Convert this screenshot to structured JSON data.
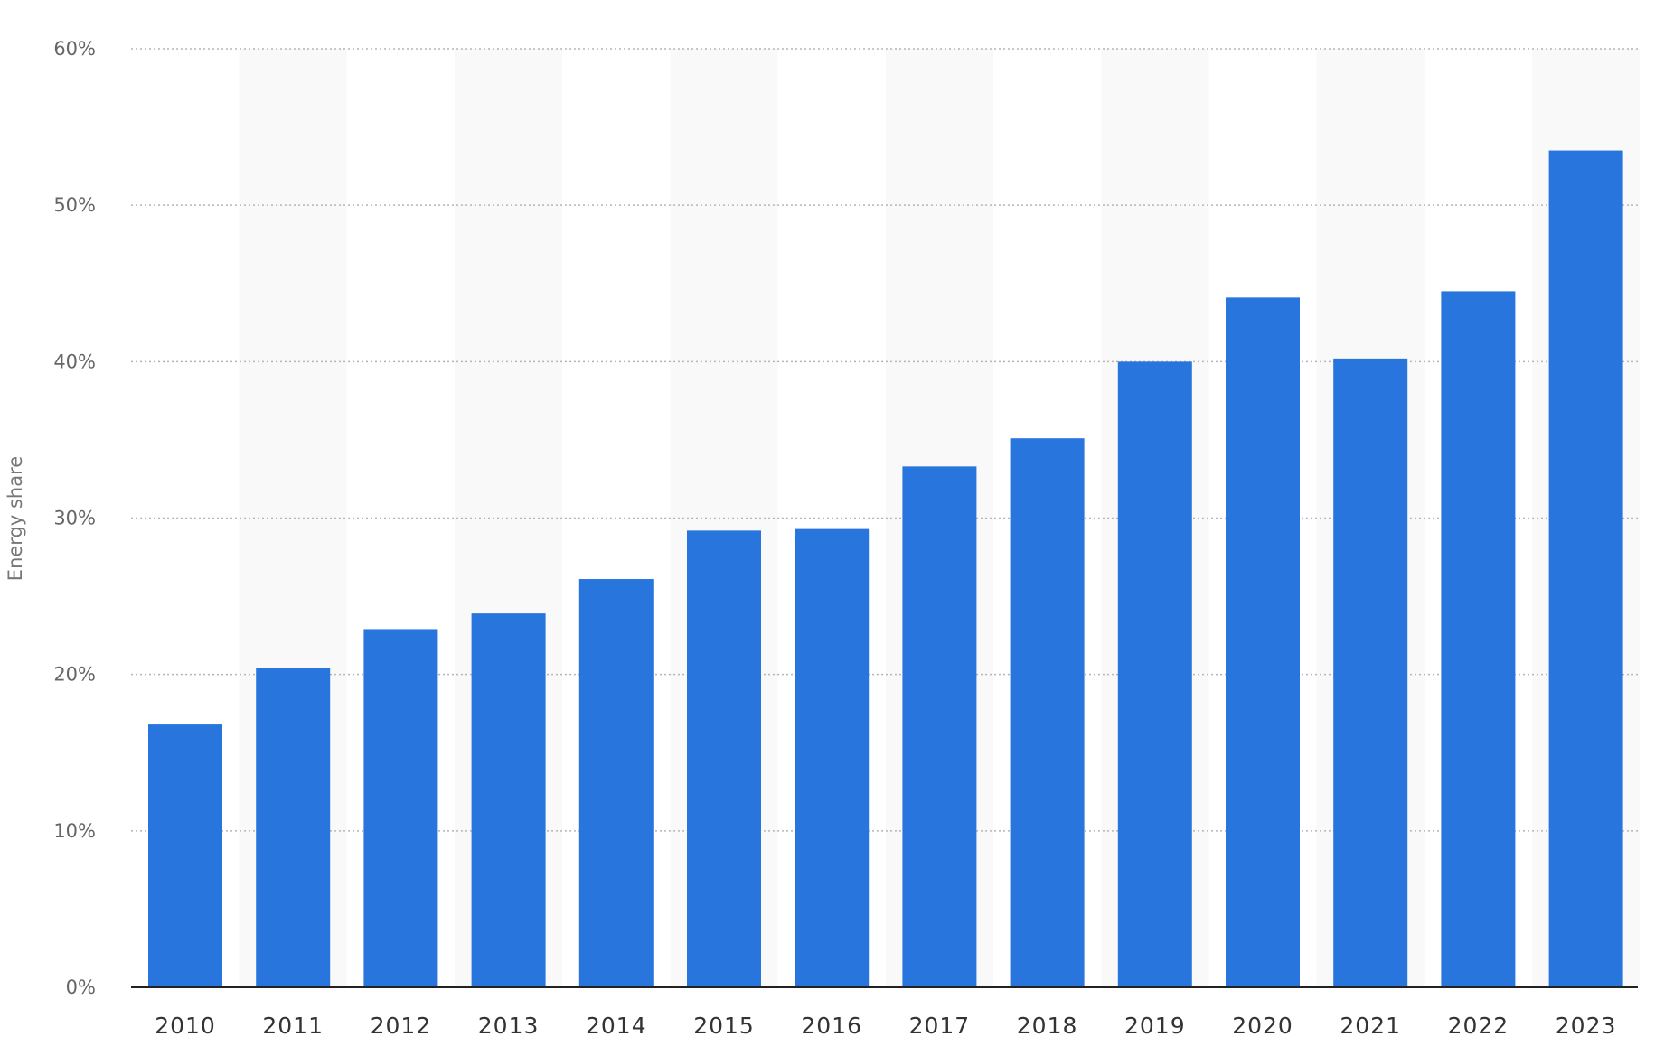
{
  "chart_data": {
    "type": "bar",
    "title": "",
    "xlabel": "",
    "ylabel": "Energy share",
    "categories": [
      "2010",
      "2011",
      "2012",
      "2013",
      "2014",
      "2015",
      "2016",
      "2017",
      "2018",
      "2019",
      "2020",
      "2021",
      "2022",
      "2023"
    ],
    "values": [
      16.8,
      20.4,
      22.9,
      23.9,
      26.1,
      29.2,
      29.3,
      33.3,
      35.1,
      40.0,
      44.1,
      40.2,
      44.5,
      53.5
    ],
    "ylim": [
      0,
      60
    ],
    "yticks": [
      "0%",
      "10%",
      "20%",
      "30%",
      "40%",
      "50%",
      "60%"
    ],
    "ytick_values": [
      0,
      10,
      20,
      30,
      40,
      50,
      60
    ],
    "grid": true,
    "legend": "none",
    "bar_color": "#2876dd",
    "band_color": "#f9f9f9",
    "grid_color": "#b5b5b5",
    "axis_color": "#222222"
  }
}
